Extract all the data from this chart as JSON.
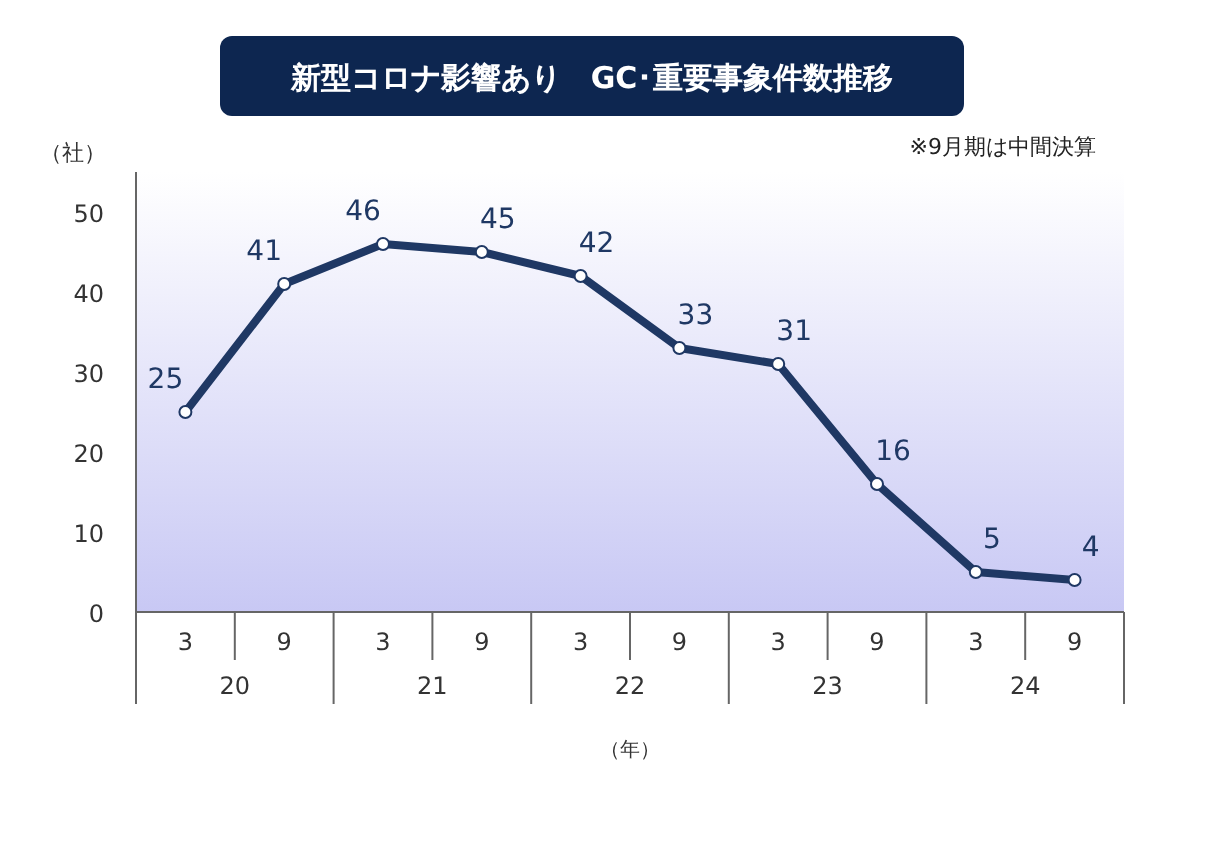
{
  "chart_data": {
    "type": "line",
    "title": "新型コロナ影響あり　GC･重要事象件数推移",
    "ylabel": "（社）",
    "xlabel": "（年）",
    "annotations": [
      "※9月期は中間決算",
      "20",
      "21",
      "22",
      "23",
      "24"
    ],
    "categories": [
      "3",
      "9",
      "3",
      "9",
      "3",
      "9",
      "3",
      "9",
      "3",
      "9"
    ],
    "series": [
      {
        "color": "#1f3864",
        "values": [
          25,
          41,
          46,
          45,
          42,
          33,
          31,
          16,
          5,
          4
        ]
      }
    ],
    "ylim": [
      0,
      55
    ],
    "yticks": [
      0,
      10,
      20,
      30,
      40,
      50
    ],
    "grid": false,
    "marker": "circle",
    "line_style": "solid",
    "data_labels": true
  }
}
